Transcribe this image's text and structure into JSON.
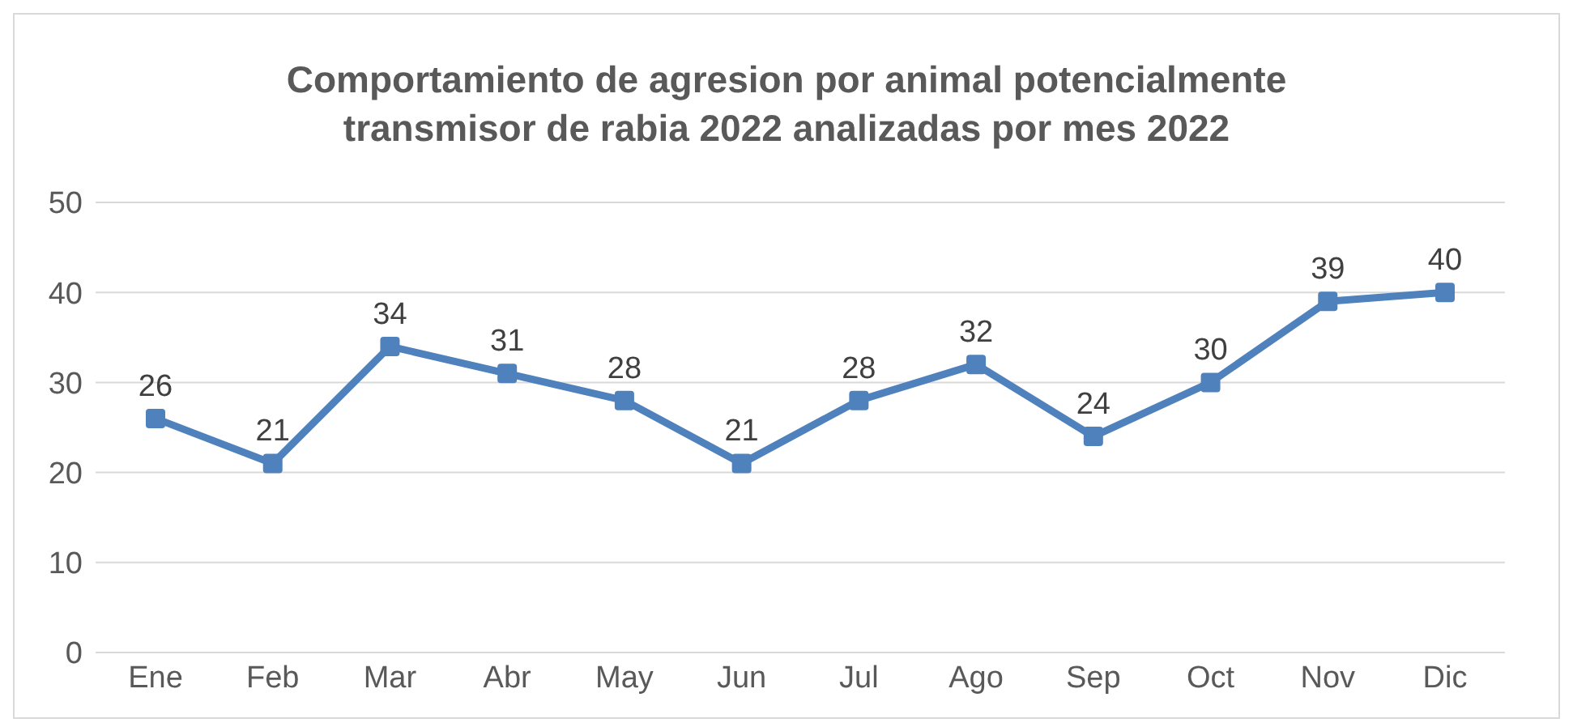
{
  "chart_data": {
    "type": "line",
    "title": "Comportamiento de agresion por animal potencialmente transmisor de rabia 2022 analizadas por mes 2022",
    "categories": [
      "Ene",
      "Feb",
      "Mar",
      "Abr",
      "May",
      "Jun",
      "Jul",
      "Ago",
      "Sep",
      "Oct",
      "Nov",
      "Dic"
    ],
    "series": [
      {
        "color": "#4f81bd",
        "values": [
          26,
          21,
          34,
          31,
          28,
          21,
          28,
          32,
          24,
          30,
          39,
          40
        ]
      }
    ],
    "ylim": [
      0,
      50
    ],
    "yticks": [
      0,
      10,
      20,
      30,
      40,
      50
    ],
    "grid": "y",
    "legend": false,
    "marker": "square",
    "line_style": "solid",
    "data_labels": true
  }
}
